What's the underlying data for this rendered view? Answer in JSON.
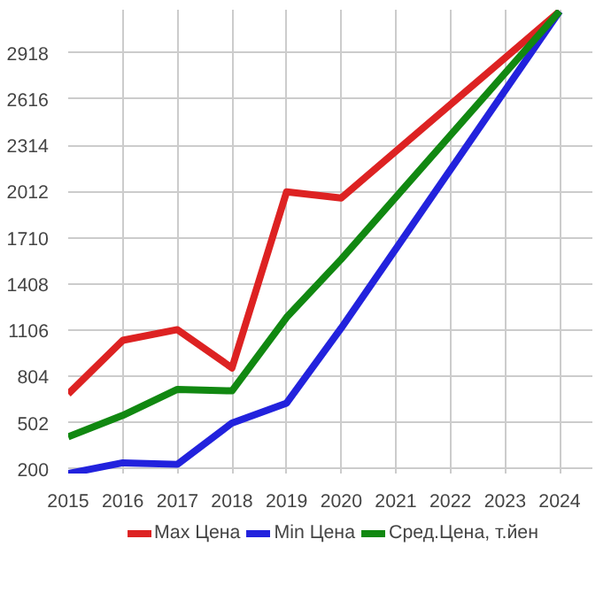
{
  "chart_data": {
    "type": "line",
    "xlim": [
      2015,
      2024.6
    ],
    "ylim": [
      170,
      3200
    ],
    "xticks": [
      2015,
      2016,
      2017,
      2018,
      2019,
      2020,
      2021,
      2022,
      2023,
      2024
    ],
    "yticks": [
      200,
      502,
      804,
      1106,
      1408,
      1710,
      2012,
      2314,
      2616,
      2918
    ],
    "grid": true,
    "legend": "bottom",
    "marker": "none",
    "line_style": "solid",
    "series": [
      {
        "name": "Max Цена",
        "color": "#dd2222",
        "x": [
          2015,
          2016,
          2017,
          2018,
          2019,
          2020,
          2024
        ],
        "values": [
          690,
          1040,
          1110,
          860,
          2010,
          1970,
          3190
        ]
      },
      {
        "name": "Min Цена",
        "color": "#2222dd",
        "x": [
          2015,
          2016,
          2017,
          2018,
          2019,
          2020,
          2024
        ],
        "values": [
          170,
          240,
          230,
          500,
          630,
          1120,
          3190
        ]
      },
      {
        "name": "Сред.Цена, т.йен",
        "color": "#118811",
        "x": [
          2015,
          2016,
          2017,
          2018,
          2019,
          2020,
          2024
        ],
        "values": [
          410,
          550,
          720,
          710,
          1190,
          1570,
          3190
        ]
      }
    ]
  }
}
